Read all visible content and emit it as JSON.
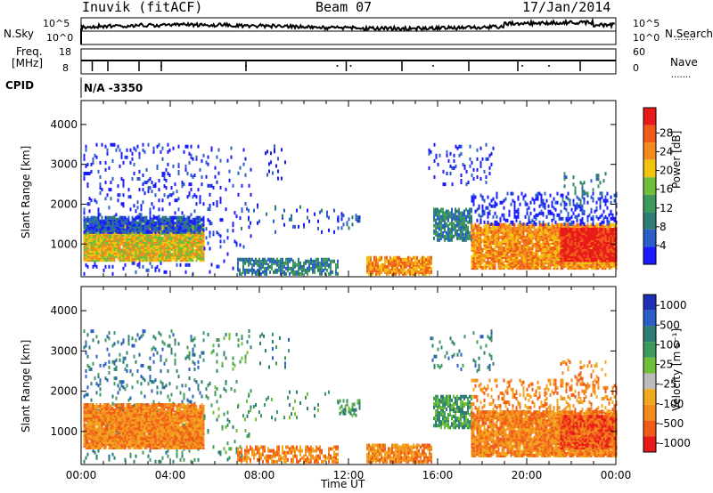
{
  "header": {
    "station": "Inuvik (fitACF)",
    "beam": "Beam 07",
    "date": "17/Jan/2014"
  },
  "status": {
    "nsky_label": "N.Sky",
    "nsearch_label": "N.Search",
    "freq_label_top": "Freq.",
    "freq_label_bottom": "[MHz]",
    "nave_label": "Nave",
    "cpid_label": "CPID",
    "cpid_value": "N/A -3350",
    "nsky_ticks": [
      "10^5",
      "10^0"
    ],
    "nsearch_ticks": [
      "10^5",
      "10^0"
    ],
    "freq_ticks": [
      "18",
      "8"
    ],
    "nave_ticks": [
      "60",
      "0"
    ],
    "dots": "......."
  },
  "colors": {
    "power_scale": [
      "#1a1aff",
      "#2a5ec8",
      "#2e7d72",
      "#3d9a5a",
      "#6fbf3a",
      "#f2c40f",
      "#f28a1e",
      "#f25a1a",
      "#e81a1a"
    ],
    "velocity_scale": [
      "#1e2fb4",
      "#2a5ec8",
      "#2e7d72",
      "#3d9a5a",
      "#6fbf3a",
      "#bcbcbc",
      "#f2a81e",
      "#f28a1e",
      "#f25a1a",
      "#e81a1a"
    ]
  },
  "chart_data": [
    {
      "type": "heatmap",
      "name": "power",
      "ylabel": "Slant Range [km]",
      "xlabel": "Time UT",
      "y_ticks": [
        1000,
        2000,
        3000,
        4000
      ],
      "ylim": [
        180,
        4600
      ],
      "x_ticks": [
        "00:00",
        "04:00",
        "08:00",
        "12:00",
        "16:00",
        "20:00",
        "00:00"
      ],
      "xlim_hours": [
        0,
        24
      ],
      "colorbar_label": "Power [dB]",
      "colorbar_ticks": [
        "4",
        "8",
        "12",
        "16",
        "20",
        "24",
        "28"
      ]
    },
    {
      "type": "heatmap",
      "name": "velocity",
      "ylabel": "Slant Range [km]",
      "xlabel": "Time UT",
      "y_ticks": [
        1000,
        2000,
        3000,
        4000
      ],
      "ylim": [
        180,
        4600
      ],
      "x_ticks": [
        "00:00",
        "04:00",
        "08:00",
        "12:00",
        "16:00",
        "20:00",
        "00:00"
      ],
      "xlim_hours": [
        0,
        24
      ],
      "colorbar_label": "Velocity [m s⁻¹]",
      "colorbar_ticks": [
        "1000",
        "500",
        "100",
        "25",
        "-25",
        "-100",
        "-500",
        "-1000"
      ]
    }
  ]
}
